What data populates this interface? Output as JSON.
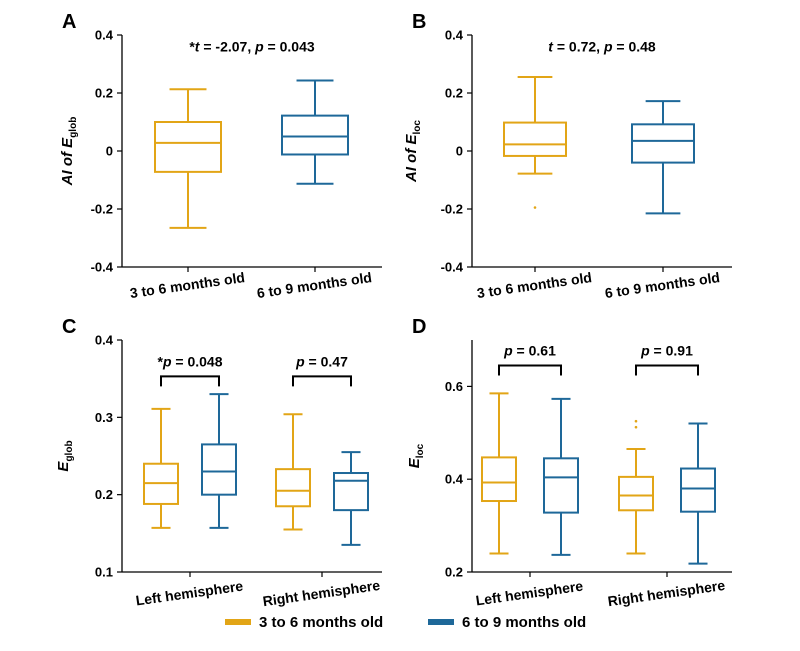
{
  "colors": {
    "group1": "#e2a516",
    "group2": "#1e6899",
    "axis": "#000000"
  },
  "legend": [
    {
      "label": "3 to 6 months old",
      "color": "#e2a516"
    },
    {
      "label": "6 to 9 months old",
      "color": "#1e6899"
    }
  ],
  "chart_data": [
    {
      "panel": "A",
      "type": "box",
      "ylabel": {
        "prefix": "AI of ",
        "main": "E",
        "sub": "glob"
      },
      "ylim": [
        -0.4,
        0.4
      ],
      "yticks": [
        -0.4,
        -0.2,
        0,
        0.2,
        0.4
      ],
      "ytick_labels": [
        "-0.4",
        "-0.2",
        "0",
        "0.2",
        "0.4"
      ],
      "categories": [
        "3 to 6 months old",
        "6 to 9 months old"
      ],
      "boxes": [
        {
          "category": 0,
          "group": 0,
          "min": -0.265,
          "q1": -0.072,
          "median": 0.028,
          "q3": 0.1,
          "max": 0.213,
          "outliers": []
        },
        {
          "category": 1,
          "group": 1,
          "min": -0.113,
          "q1": -0.012,
          "median": 0.05,
          "q3": 0.122,
          "max": 0.243,
          "outliers": []
        }
      ],
      "annotations": [
        {
          "text_parts": [
            {
              "t": "*",
              "i": false
            },
            {
              "t": "t",
              "i": true
            },
            {
              "t": " = -2.07, ",
              "i": false
            },
            {
              "t": "p",
              "i": true
            },
            {
              "t": " = 0.043",
              "i": false
            }
          ],
          "over": "center",
          "at_y": 0.36,
          "bracket": false
        }
      ]
    },
    {
      "panel": "B",
      "type": "box",
      "ylabel": {
        "prefix": "AI of ",
        "main": "E",
        "sub": "loc"
      },
      "ylim": [
        -0.4,
        0.4
      ],
      "yticks": [
        -0.4,
        -0.2,
        0,
        0.2,
        0.4
      ],
      "ytick_labels": [
        "-0.4",
        "-0.2",
        "0",
        "0.2",
        "0.4"
      ],
      "categories": [
        "3 to 6 months old",
        "6 to 9 months old"
      ],
      "boxes": [
        {
          "category": 0,
          "group": 0,
          "min": -0.078,
          "q1": -0.017,
          "median": 0.023,
          "q3": 0.098,
          "max": 0.255,
          "outliers": [
            -0.195
          ]
        },
        {
          "category": 1,
          "group": 1,
          "min": -0.215,
          "q1": -0.04,
          "median": 0.035,
          "q3": 0.092,
          "max": 0.172,
          "outliers": []
        }
      ],
      "annotations": [
        {
          "text_parts": [
            {
              "t": "t",
              "i": true
            },
            {
              "t": " = 0.72, ",
              "i": false
            },
            {
              "t": "p",
              "i": true
            },
            {
              "t": " = 0.48",
              "i": false
            }
          ],
          "over": "center",
          "at_y": 0.36,
          "bracket": false
        }
      ]
    },
    {
      "panel": "C",
      "type": "box",
      "ylabel": {
        "prefix": "",
        "main": "E",
        "sub": "glob"
      },
      "ylim": [
        0.1,
        0.4
      ],
      "yticks": [
        0.1,
        0.2,
        0.3,
        0.4
      ],
      "ytick_labels": [
        "0.1",
        "0.2",
        "0.3",
        "0.4"
      ],
      "categories": [
        "Left hemisphere",
        "Right hemisphere"
      ],
      "boxes": [
        {
          "category": 0,
          "group": 0,
          "min": 0.157,
          "q1": 0.188,
          "median": 0.215,
          "q3": 0.24,
          "max": 0.311,
          "outliers": []
        },
        {
          "category": 0,
          "group": 1,
          "min": 0.157,
          "q1": 0.2,
          "median": 0.23,
          "q3": 0.265,
          "max": 0.33,
          "outliers": []
        },
        {
          "category": 1,
          "group": 0,
          "min": 0.155,
          "q1": 0.185,
          "median": 0.205,
          "q3": 0.233,
          "max": 0.304,
          "outliers": []
        },
        {
          "category": 1,
          "group": 1,
          "min": 0.135,
          "q1": 0.18,
          "median": 0.218,
          "q3": 0.228,
          "max": 0.255,
          "outliers": []
        }
      ],
      "annotations": [
        {
          "text_parts": [
            {
              "t": "*",
              "i": false
            },
            {
              "t": "p",
              "i": true
            },
            {
              "t": " = 0.048",
              "i": false
            }
          ],
          "over": 0,
          "at_y": 0.353,
          "bracket": true
        },
        {
          "text_parts": [
            {
              "t": "p",
              "i": true
            },
            {
              "t": " = 0.47",
              "i": false
            }
          ],
          "over": 1,
          "at_y": 0.353,
          "bracket": true
        }
      ]
    },
    {
      "panel": "D",
      "type": "box",
      "ylabel": {
        "prefix": "",
        "main": "E",
        "sub": "loc"
      },
      "ylim": [
        0.2,
        0.7
      ],
      "yticks": [
        0.2,
        0.4,
        0.6
      ],
      "ytick_labels": [
        "0.2",
        "0.4",
        "0.6"
      ],
      "categories": [
        "Left hemisphere",
        "Right hemisphere"
      ],
      "boxes": [
        {
          "category": 0,
          "group": 0,
          "min": 0.24,
          "q1": 0.353,
          "median": 0.393,
          "q3": 0.447,
          "max": 0.585,
          "outliers": []
        },
        {
          "category": 0,
          "group": 1,
          "min": 0.237,
          "q1": 0.328,
          "median": 0.404,
          "q3": 0.445,
          "max": 0.573,
          "outliers": []
        },
        {
          "category": 1,
          "group": 0,
          "min": 0.24,
          "q1": 0.333,
          "median": 0.365,
          "q3": 0.405,
          "max": 0.465,
          "outliers": [
            0.512,
            0.525
          ]
        },
        {
          "category": 1,
          "group": 1,
          "min": 0.218,
          "q1": 0.33,
          "median": 0.38,
          "q3": 0.423,
          "max": 0.52,
          "outliers": []
        }
      ],
      "annotations": [
        {
          "text_parts": [
            {
              "t": "p",
              "i": true
            },
            {
              "t": " = 0.61",
              "i": false
            }
          ],
          "over": 0,
          "at_y": 0.645,
          "bracket": true
        },
        {
          "text_parts": [
            {
              "t": "p",
              "i": true
            },
            {
              "t": " = 0.91",
              "i": false
            }
          ],
          "over": 1,
          "at_y": 0.645,
          "bracket": true
        }
      ]
    }
  ]
}
